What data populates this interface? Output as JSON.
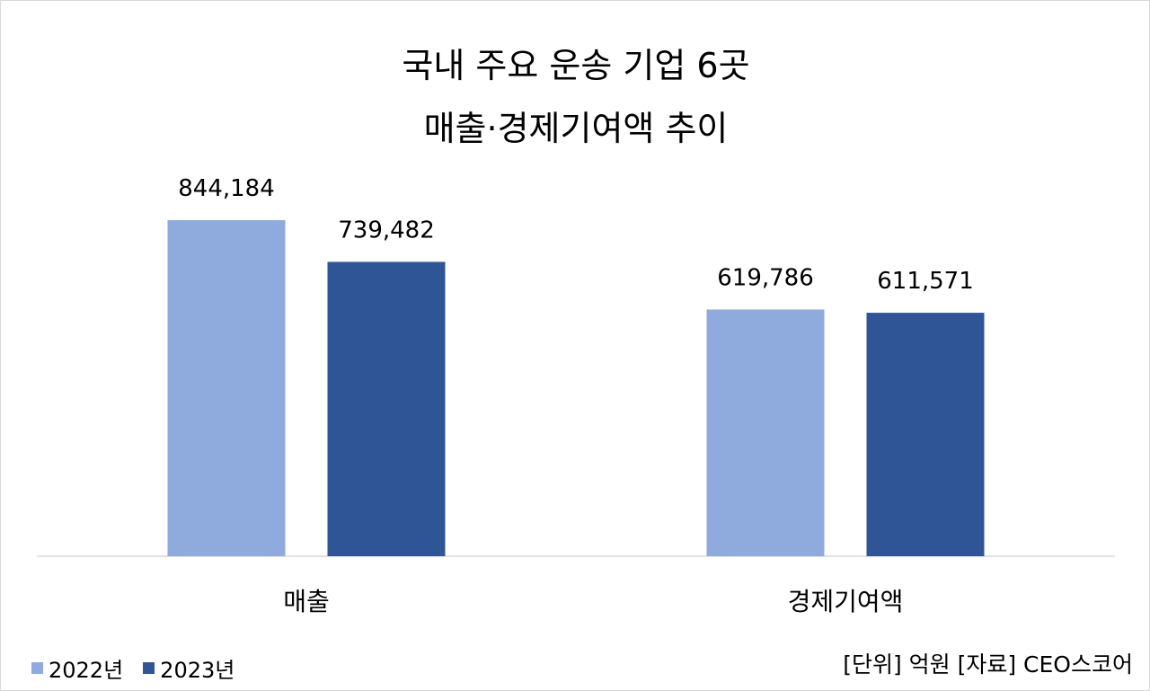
{
  "title_line1": "국내 주요 운송 기업 6곳",
  "title_line2": "매출·경제기여액 추이",
  "source_note": "[단위] 억원 [자료] CEO스코어",
  "chart_data": {
    "type": "bar",
    "title": "국내 주요 운송 기업 6곳 매출·경제기여액 추이",
    "categories": [
      "매출",
      "경제기여액"
    ],
    "series": [
      {
        "name": "2022년",
        "color": "#8faadc",
        "values": [
          844184,
          619786
        ],
        "labels": [
          "844,184",
          "619,786"
        ]
      },
      {
        "name": "2023년",
        "color": "#2f5597",
        "values": [
          739482,
          611571
        ],
        "labels": [
          "739,482",
          "611,571"
        ]
      }
    ],
    "ylim": [
      0,
      1000000
    ],
    "grid": false,
    "legend_position": "bottom-left"
  }
}
